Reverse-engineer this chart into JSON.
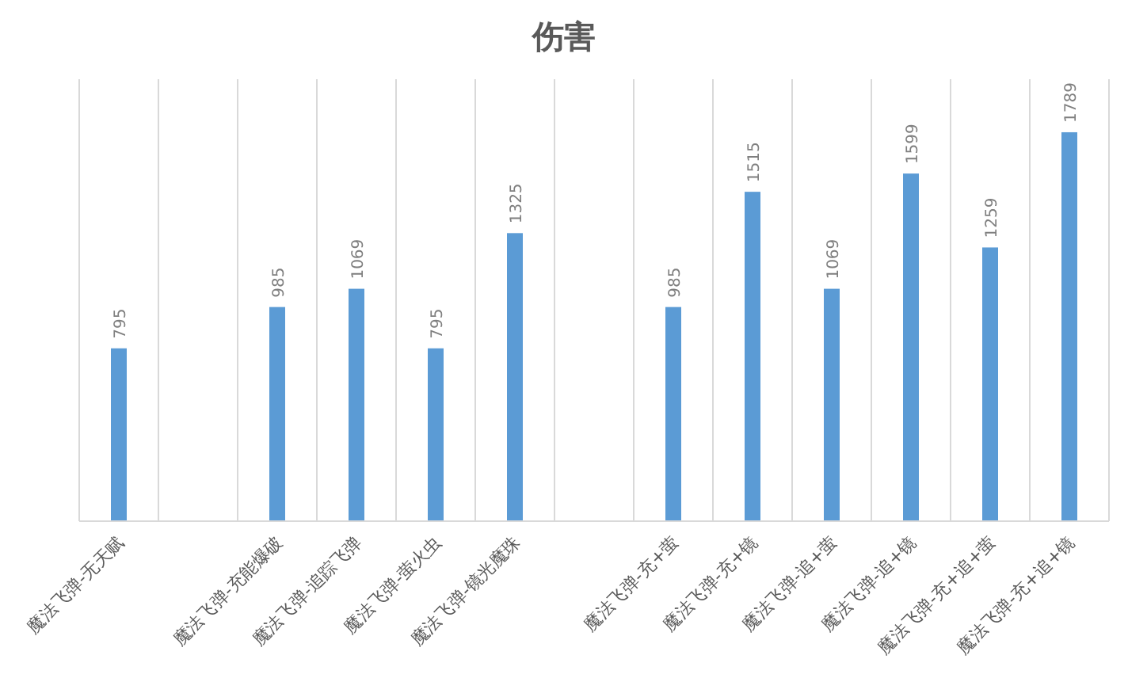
{
  "chart_data": {
    "type": "bar",
    "title": "伤害",
    "categories": [
      "魔法飞弹-无天赋",
      null,
      "魔法飞弹-充能爆破",
      "魔法飞弹-追踪飞弹",
      "魔法飞弹-萤火虫",
      "魔法飞弹-镜光魔珠",
      null,
      "魔法飞弹-充+萤",
      "魔法飞弹-充+镜",
      "魔法飞弹-追+萤",
      "魔法飞弹-追+镜",
      "魔法飞弹-充+追+萤",
      "魔法飞弹-充+追+镜"
    ],
    "values": [
      795,
      null,
      985,
      1069,
      795,
      1325,
      null,
      985,
      1515,
      1069,
      1599,
      1259,
      1789
    ],
    "color": "#5b9bd5",
    "data_labels": true,
    "grid": "x"
  }
}
